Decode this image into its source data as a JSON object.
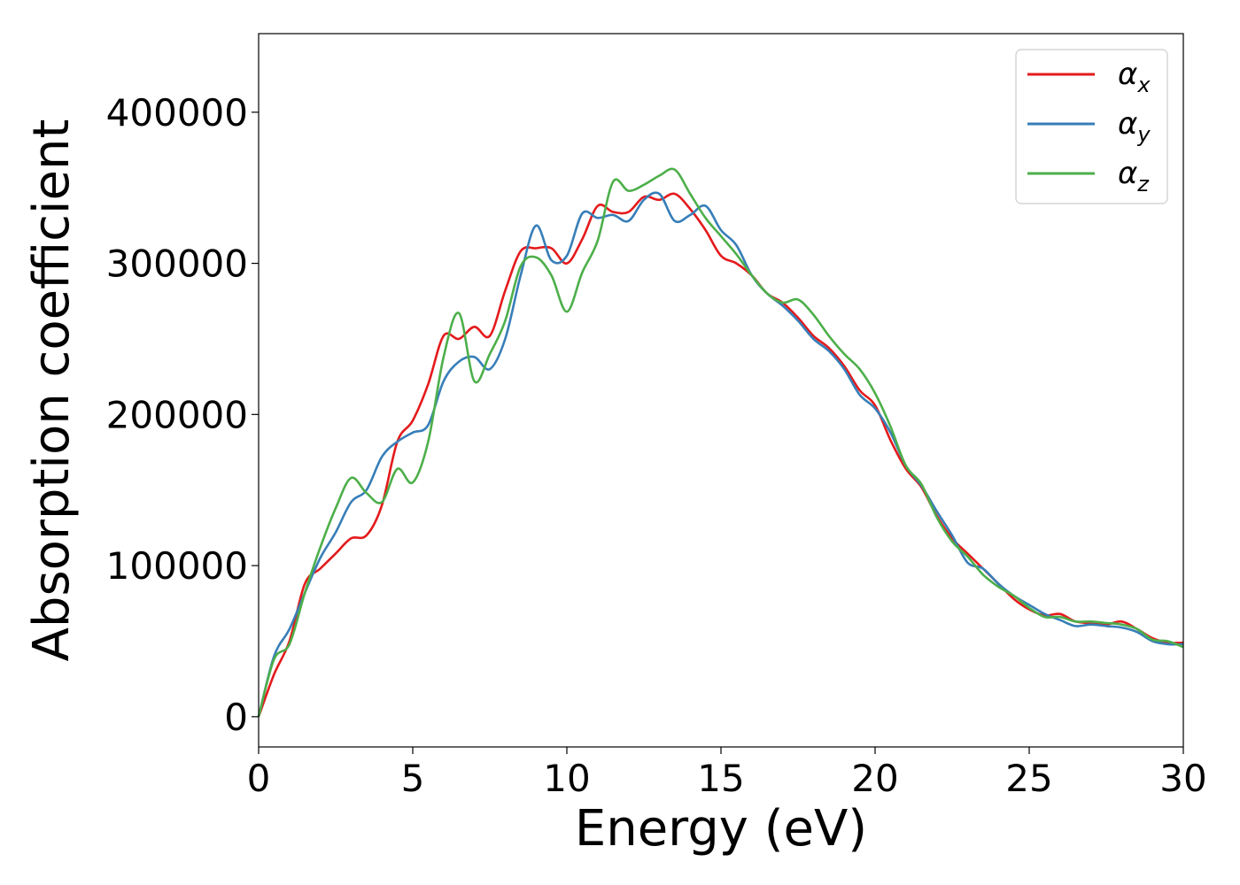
{
  "chart_data": {
    "type": "line",
    "title": "",
    "xlabel": "Energy (eV)",
    "ylabel": "Absorption coefficient",
    "xlim": [
      0,
      30
    ],
    "ylim": [
      -20000,
      452000
    ],
    "x_ticks": [
      "0",
      "5",
      "10",
      "15",
      "20",
      "25",
      "30"
    ],
    "y_ticks": [
      "0",
      "100000",
      "200000",
      "300000",
      "400000"
    ],
    "grid": false,
    "legend_position": "top-right",
    "x": [
      0,
      0.5,
      1,
      1.5,
      2,
      2.5,
      3,
      3.5,
      4,
      4.5,
      5,
      5.5,
      6,
      6.5,
      7,
      7.5,
      8,
      8.5,
      9,
      9.5,
      10,
      10.5,
      11,
      11.5,
      12,
      12.5,
      13,
      13.5,
      14,
      14.5,
      15,
      15.5,
      16,
      16.5,
      17,
      17.5,
      18,
      18.5,
      19,
      19.5,
      20,
      20.5,
      21,
      21.5,
      22,
      22.5,
      23,
      23.5,
      24,
      24.5,
      25,
      25.5,
      26,
      26.5,
      27,
      27.5,
      28,
      28.5,
      29,
      29.5,
      30
    ],
    "series": [
      {
        "name": "α",
        "subscript": "x",
        "color": "#e41a1c",
        "values": [
          0,
          28000,
          50000,
          88000,
          98000,
          108000,
          118000,
          120000,
          140000,
          182000,
          196000,
          220000,
          252000,
          250000,
          258000,
          252000,
          282000,
          308000,
          310000,
          310000,
          300000,
          316000,
          338000,
          334000,
          334000,
          344000,
          342000,
          346000,
          336000,
          322000,
          305000,
          300000,
          292000,
          280000,
          274000,
          264000,
          252000,
          244000,
          232000,
          216000,
          206000,
          183000,
          164000,
          152000,
          133000,
          118000,
          108000,
          98000,
          88000,
          78000,
          71000,
          67000,
          68000,
          63000,
          62000,
          61000,
          63000,
          58000,
          52000,
          49000,
          49000
        ]
      },
      {
        "name": "α",
        "subscript": "y",
        "color": "#377eb8",
        "values": [
          0,
          40000,
          58000,
          82000,
          105000,
          122000,
          142000,
          150000,
          172000,
          182000,
          188000,
          193000,
          222000,
          235000,
          238000,
          230000,
          250000,
          292000,
          325000,
          302000,
          305000,
          333000,
          330000,
          332000,
          328000,
          342000,
          346000,
          328000,
          332000,
          338000,
          322000,
          312000,
          292000,
          280000,
          272000,
          262000,
          250000,
          242000,
          230000,
          213000,
          204000,
          188000,
          166000,
          153000,
          136000,
          120000,
          102000,
          98000,
          88000,
          80000,
          74000,
          68000,
          64000,
          60000,
          61000,
          60000,
          59000,
          56000,
          50000,
          48000,
          48000
        ]
      },
      {
        "name": "α",
        "subscript": "z",
        "color": "#4daf4a",
        "values": [
          0,
          38000,
          48000,
          82000,
          112000,
          138000,
          158000,
          148000,
          142000,
          164000,
          155000,
          182000,
          238000,
          267000,
          222000,
          240000,
          262000,
          298000,
          304000,
          292000,
          268000,
          294000,
          315000,
          354000,
          348000,
          352000,
          358000,
          362000,
          346000,
          330000,
          318000,
          306000,
          292000,
          280000,
          274000,
          276000,
          266000,
          252000,
          240000,
          230000,
          214000,
          192000,
          166000,
          154000,
          132000,
          116000,
          106000,
          94000,
          86000,
          80000,
          72000,
          66000,
          66000,
          63000,
          63000,
          62000,
          61000,
          58000,
          51000,
          50000,
          46000
        ]
      }
    ]
  }
}
